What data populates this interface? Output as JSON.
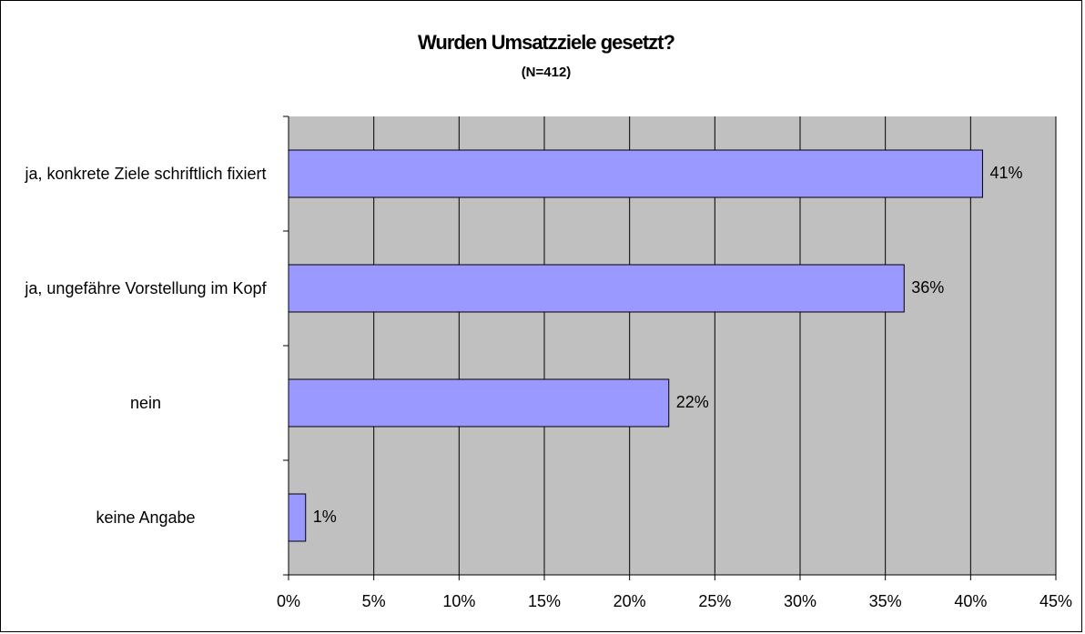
{
  "chart_data": {
    "type": "barh",
    "title": "Wurden Umsatzziele gesetzt?",
    "subtitle": "(N=412)",
    "categories": [
      "ja, konkrete Ziele schriftlich fixiert",
      "ja, ungefähre Vorstellung im Kopf",
      "nein",
      "keine Angabe"
    ],
    "values": [
      40.7,
      36.1,
      22.3,
      1.0
    ],
    "value_labels": [
      "41%",
      "36%",
      "22%",
      "1%"
    ],
    "color": "#9999ff",
    "xlim": [
      0,
      45
    ],
    "xticks": [
      {
        "value": 0,
        "label": "0%"
      },
      {
        "value": 5,
        "label": "5%"
      },
      {
        "value": 10,
        "label": "10%"
      },
      {
        "value": 15,
        "label": "15%"
      },
      {
        "value": 20,
        "label": "20%"
      },
      {
        "value": 25,
        "label": "25%"
      },
      {
        "value": 30,
        "label": "30%"
      },
      {
        "value": 35,
        "label": "35%"
      },
      {
        "value": 40,
        "label": "40%"
      },
      {
        "value": 45,
        "label": "45%"
      }
    ],
    "grid": true
  }
}
